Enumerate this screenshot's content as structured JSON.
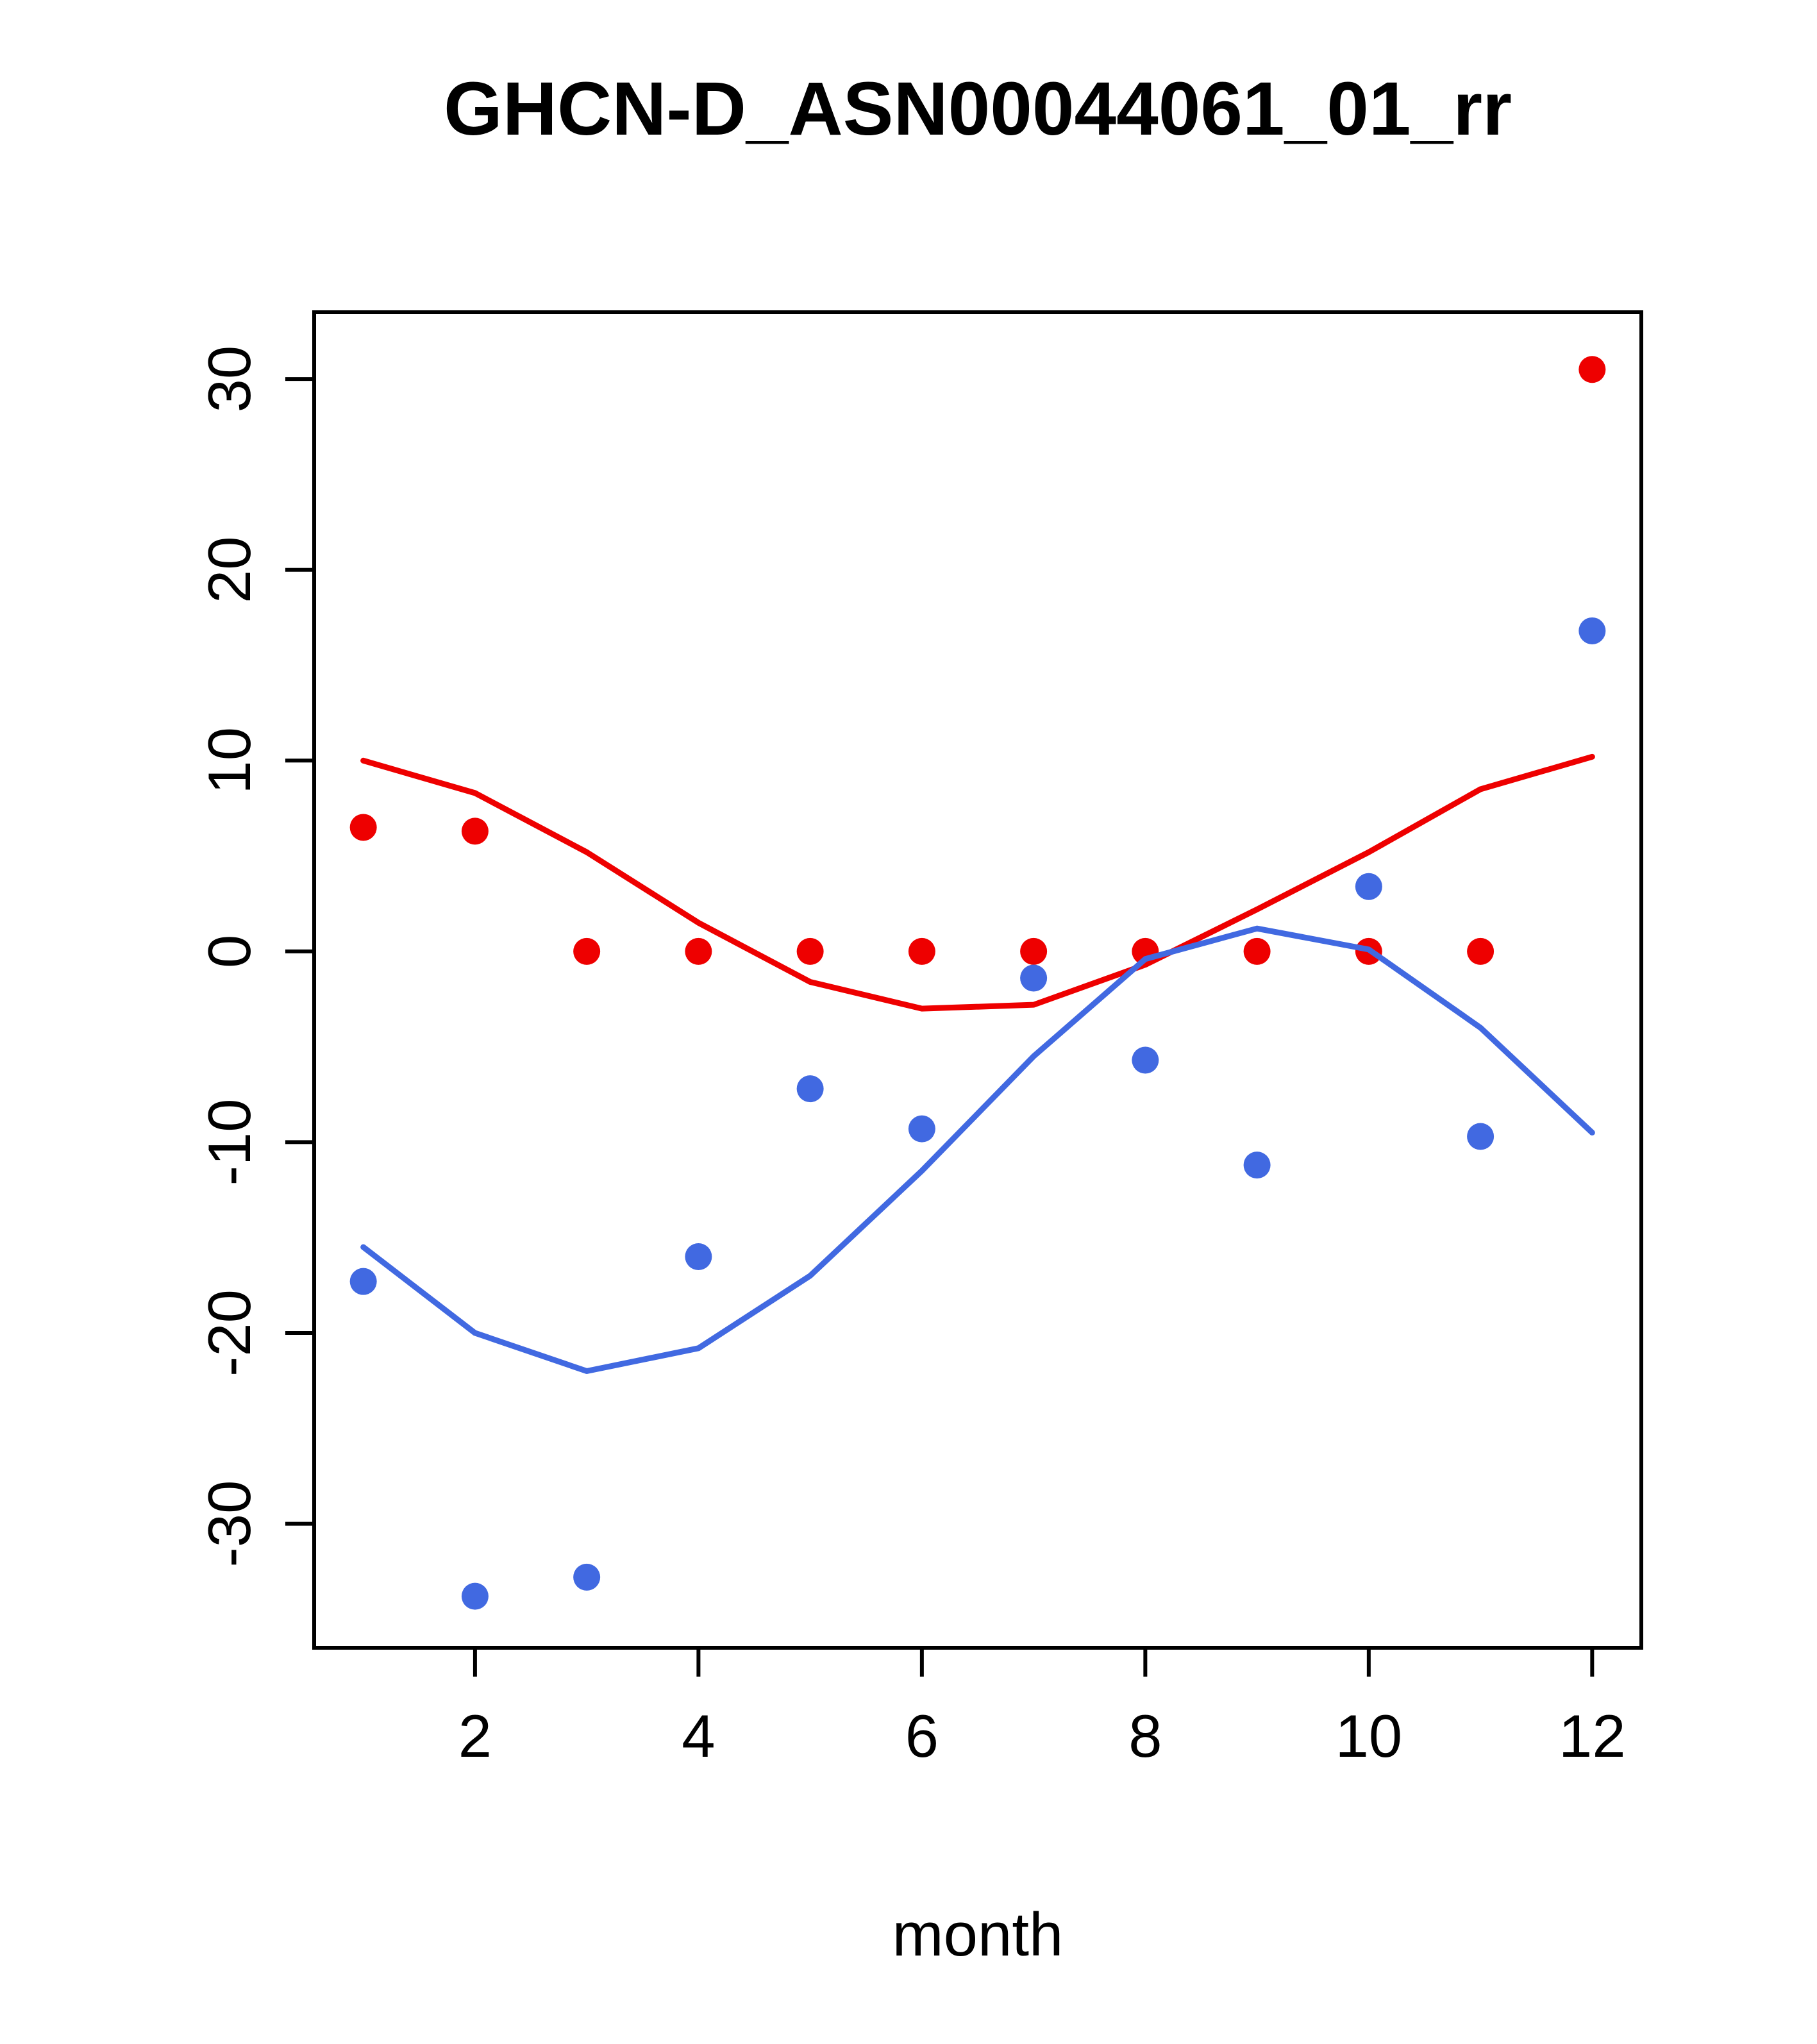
{
  "chart_data": {
    "type": "scatter",
    "title": "GHCN-D_ASN00044061_01_rr",
    "xlabel": "month",
    "ylabel": "",
    "x": [
      1,
      2,
      3,
      4,
      5,
      6,
      7,
      8,
      9,
      10,
      11,
      12
    ],
    "series": [
      {
        "name": "red-points",
        "render": "points",
        "color": "#EE0000",
        "values": [
          6.5,
          6.3,
          0,
          0,
          0,
          0,
          0,
          0,
          0,
          0,
          0,
          30.5
        ]
      },
      {
        "name": "red-line",
        "render": "line",
        "color": "#EE0000",
        "values": [
          10,
          8.3,
          5.2,
          1.5,
          -1.6,
          -3,
          -2.8,
          -0.7,
          2.2,
          5.2,
          8.5,
          10.2
        ]
      },
      {
        "name": "blue-points",
        "render": "points",
        "color": "#4169E1",
        "values": [
          -17.3,
          -33.8,
          -32.8,
          -16,
          -7.2,
          -9.3,
          -1.4,
          -5.7,
          -11.2,
          3.4,
          -9.7,
          16.8
        ]
      },
      {
        "name": "blue-line",
        "render": "line",
        "color": "#4169E1",
        "values": [
          -15.5,
          -20,
          -22,
          -20.8,
          -17,
          -11.5,
          -5.5,
          -0.4,
          1.2,
          0.1,
          -4,
          -9.5
        ]
      }
    ],
    "x_ticks": [
      2,
      4,
      6,
      8,
      10,
      12
    ],
    "y_ticks": [
      -30,
      -20,
      -10,
      0,
      10,
      20,
      30
    ],
    "xlim": [
      0.56,
      12.44
    ],
    "ylim": [
      -36.5,
      33.5
    ],
    "grid": false,
    "legend": "none"
  }
}
